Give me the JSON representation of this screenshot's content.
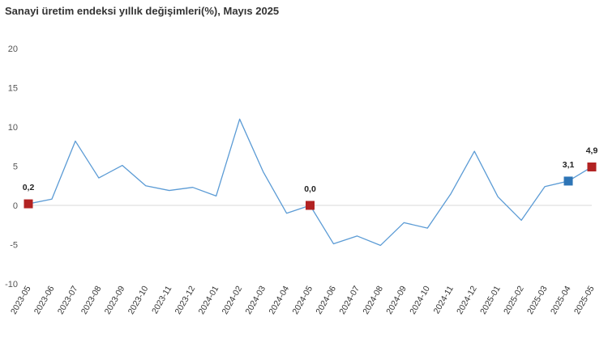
{
  "chart_data": {
    "type": "line",
    "title": "Sanayi üretim endeksi yıllık değişimleri(%), Mayıs 2025",
    "xlabel": "",
    "ylabel": "",
    "ylim": [
      -10,
      20
    ],
    "yticks": [
      -10,
      -5,
      0,
      5,
      10,
      15,
      20
    ],
    "grid": false,
    "legend": "none",
    "categories": [
      "2023-05",
      "2023-06",
      "2023-07",
      "2023-08",
      "2023-09",
      "2023-10",
      "2023-11",
      "2023-12",
      "2024-01",
      "2024-02",
      "2024-03",
      "2024-04",
      "2024-05",
      "2024-06",
      "2024-07",
      "2024-08",
      "2024-09",
      "2024-10",
      "2024-11",
      "2024-12",
      "2025-01",
      "2025-02",
      "2025-03",
      "2025-04",
      "2025-05"
    ],
    "series": [
      {
        "values": [
          0.2,
          0.8,
          8.2,
          3.5,
          5.1,
          2.5,
          1.9,
          2.3,
          1.2,
          11.0,
          4.3,
          -1.0,
          0.0,
          -4.9,
          -3.9,
          -5.1,
          -2.2,
          -2.9,
          1.5,
          6.9,
          1.1,
          -1.9,
          2.4,
          3.1,
          4.9
        ],
        "color": "#5b9bd5"
      }
    ],
    "highlights": [
      {
        "category": "2023-05",
        "value": 0.2,
        "label": "0,2",
        "color": "#b22222"
      },
      {
        "category": "2024-05",
        "value": 0.0,
        "label": "0,0",
        "color": "#b22222"
      },
      {
        "category": "2025-04",
        "value": 3.1,
        "label": "3,1",
        "color": "#2e75b6"
      },
      {
        "category": "2025-05",
        "value": 4.9,
        "label": "4,9",
        "color": "#b22222"
      }
    ],
    "axis_color": "#d9d9d9"
  }
}
